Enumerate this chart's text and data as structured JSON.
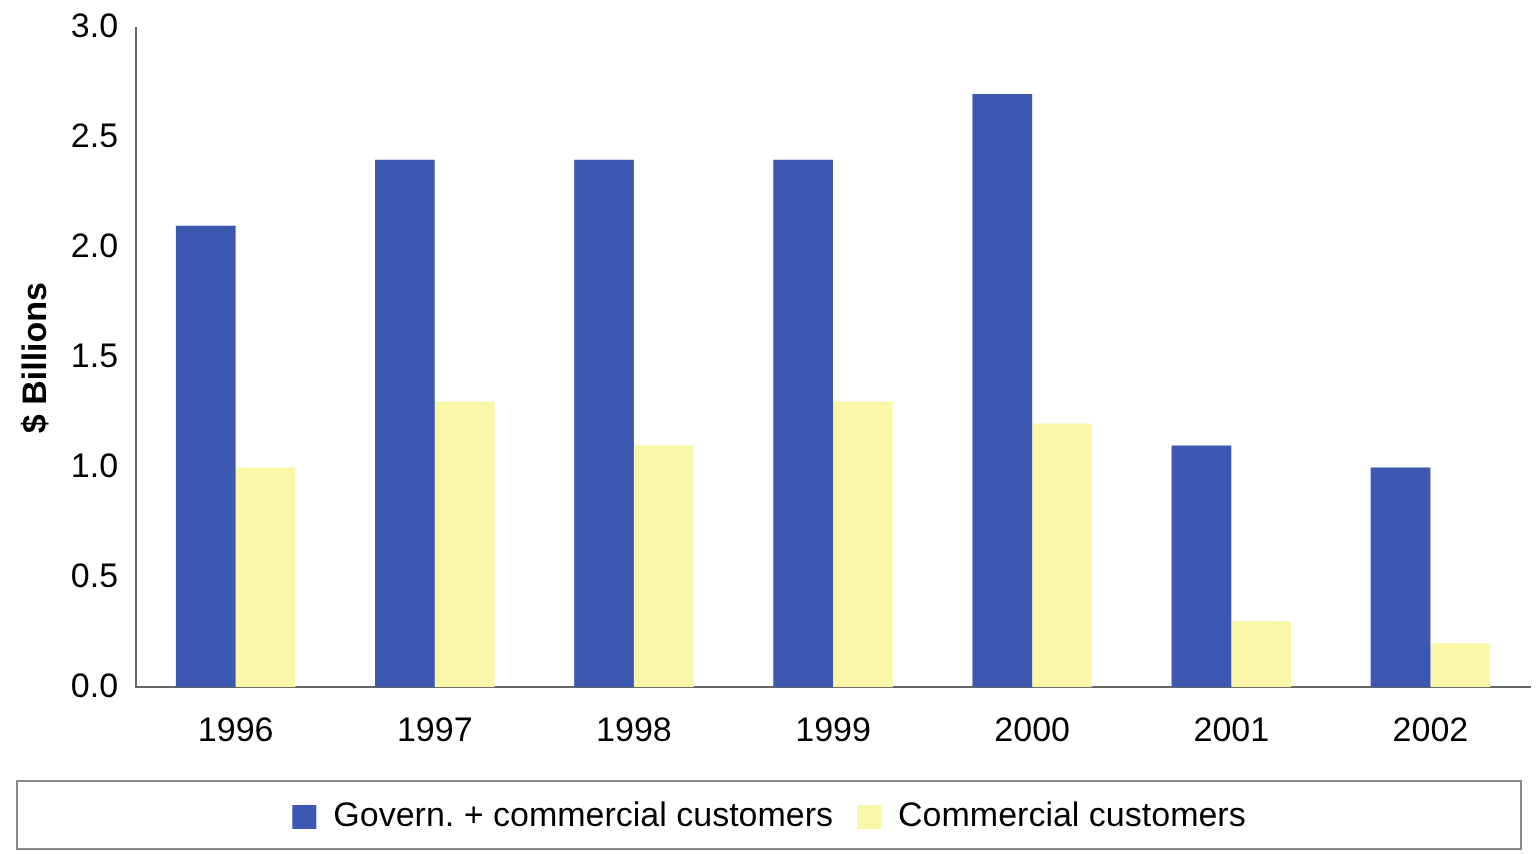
{
  "chart_data": {
    "type": "bar",
    "ylabel": "$ Billions",
    "categories": [
      "1996",
      "1997",
      "1998",
      "1999",
      "2000",
      "2001",
      "2002"
    ],
    "series": [
      {
        "name": "Govern. + commercial customers",
        "color": "#3d58b0",
        "values": [
          2.1,
          2.4,
          2.4,
          2.4,
          2.7,
          1.1,
          1.0
        ]
      },
      {
        "name": "Commercial customers",
        "color": "#fbf7a8",
        "values": [
          1.0,
          1.3,
          1.1,
          1.3,
          1.2,
          0.3,
          0.2
        ]
      }
    ],
    "ylim": [
      0,
      3
    ],
    "yticks": [
      {
        "value": 0,
        "label": "0.0"
      },
      0.5,
      {
        "value": 1,
        "label": "1.0"
      },
      1.5,
      {
        "value": 2,
        "label": "2.0"
      },
      2.5,
      {
        "value": 3,
        "label": "3.0"
      }
    ],
    "grid": false,
    "legend": "bottom"
  }
}
